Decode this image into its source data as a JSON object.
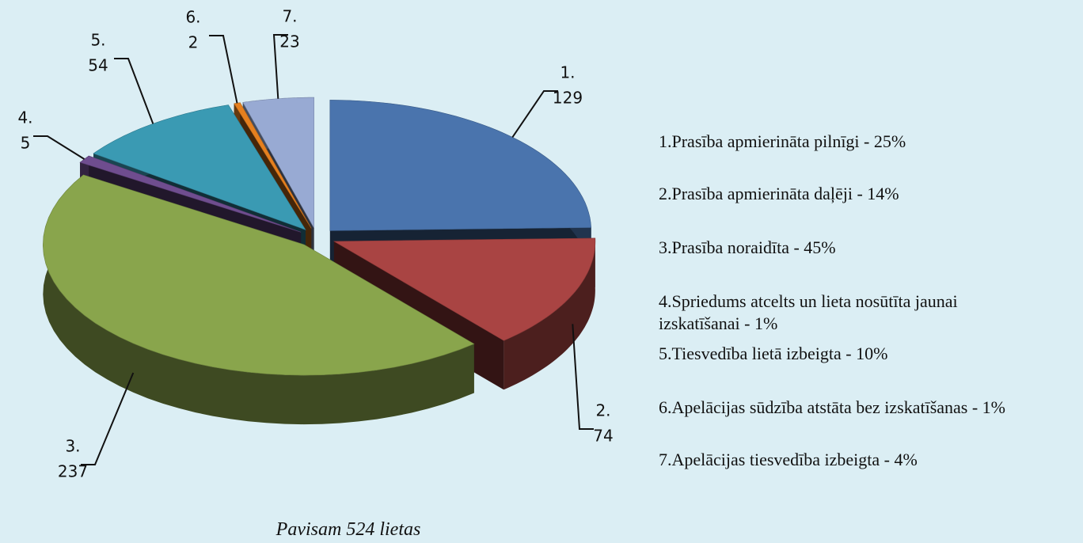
{
  "chart_data": {
    "type": "pie",
    "categories": [
      "1.",
      "2.",
      "3.",
      "4.",
      "5.",
      "6.",
      "7."
    ],
    "values": [
      129,
      74,
      237,
      5,
      54,
      2,
      23
    ],
    "colors": [
      "#4a74ad",
      "#a94443",
      "#89a54c",
      "#6f4d8f",
      "#3a9ab3",
      "#e5801f",
      "#98aad3"
    ],
    "legend": [
      "1.Prasība apmierināta pilnīgi - 25%",
      "2.Prasība apmierināta daļēji - 14%",
      "3.Prasība noraidīta - 45%",
      "4.Spriedums atcelts un lieta nosūtīta jaunai izskatīšanai - 1%",
      "5.Tiesvedība lietā izbeigta - 10%",
      "6.Apelācijas sūdzība atstāta bez izskatīšanas - 1%",
      "7.Apelācijas tiesvedība izbeigta - 4%"
    ],
    "footer": "Pavisam 524 lietas"
  }
}
